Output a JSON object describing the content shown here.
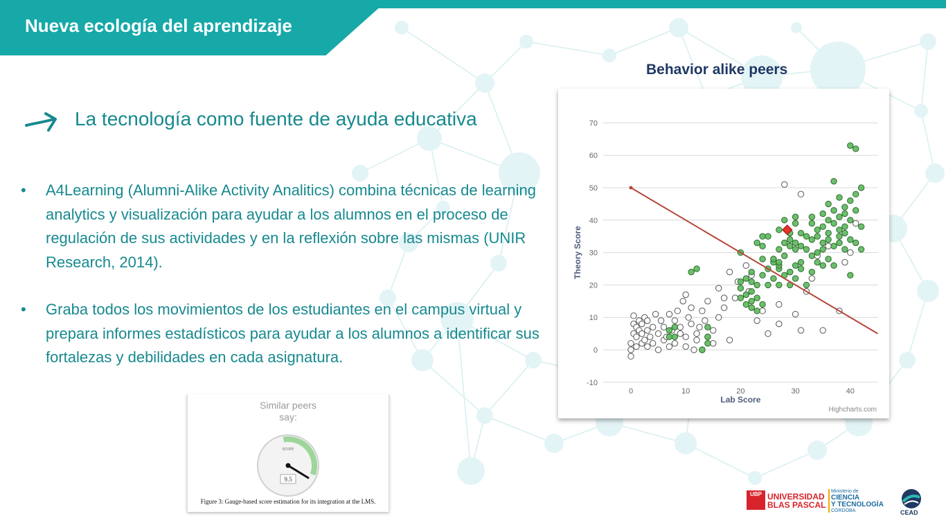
{
  "slide": {
    "title": "Nueva ecología del aprendizaje",
    "subtitle": "La tecnología como fuente de ayuda educativa",
    "bullets": [
      "A4Learning (Alumni-Alike Activity Analitics) combina técnicas de learning analytics y visualización para ayudar a los alumnos en el proceso de regulación de sus actividades y en la reflexión sobre las mismas (UNIR Research, 2014).",
      "Graba todos los movimientos de los estudiantes en el campus virtual y prepara informes estadísticos para ayudar a los alumnos a identificar sus fortalezas y debilidades en cada asignatura."
    ],
    "bullet_symbol": "•"
  },
  "scatter": {
    "heading": "Behavior alike peers",
    "credit": "Highcharts.com"
  },
  "gauge": {
    "title_line1": "Similar peers",
    "title_line2": "say:",
    "label": "score",
    "value_text": "9.5",
    "value": 9.5,
    "max": 10,
    "caption": "Figure 3: Gauge-based score estimation for its integration at the LMS."
  },
  "logos": {
    "ubp_box": "UBP",
    "ubp_line1": "UNIVERSIDAD",
    "ubp_line2": "BLAS PASCAL",
    "ministerio_line1": "Ministerio de",
    "ministerio_line2": "CIENCIA",
    "ministerio_line3": "Y TECNOLOGÍA",
    "ministerio_line4": "CÓRDOBA",
    "cead": "CEAD"
  },
  "colors": {
    "accent": "#17a8a8",
    "text": "#17898f",
    "heading": "#1f3864",
    "point_green": "#5cb85c",
    "point_white": "#ffffff",
    "highlight": "#e8332a",
    "regression": "#b5473a"
  },
  "chart_data": {
    "type": "scatter",
    "title": "",
    "xlabel": "Lab Score",
    "ylabel": "Theory Score",
    "xlim": [
      -3,
      45
    ],
    "ylim": [
      -10,
      70
    ],
    "x_ticks": [
      0,
      10,
      20,
      30,
      40
    ],
    "y_ticks": [
      -10,
      0,
      10,
      20,
      30,
      40,
      50,
      60,
      70
    ],
    "grid": true,
    "legend": "none",
    "trend_line": {
      "x": [
        0,
        45
      ],
      "y": [
        50,
        5
      ]
    },
    "highlight_point": {
      "x": 28.5,
      "y": 37
    },
    "series": [
      {
        "color": "white",
        "points": [
          [
            0,
            -2
          ],
          [
            0,
            0
          ],
          [
            0,
            2
          ],
          [
            0.5,
            5
          ],
          [
            0.5,
            8
          ],
          [
            0.5,
            10.5
          ],
          [
            1,
            1
          ],
          [
            1,
            4
          ],
          [
            1,
            7
          ],
          [
            1.5,
            6
          ],
          [
            1.5,
            9
          ],
          [
            2,
            2
          ],
          [
            2,
            5
          ],
          [
            2,
            8
          ],
          [
            2.5,
            3
          ],
          [
            2.5,
            10
          ],
          [
            3,
            1
          ],
          [
            3,
            6
          ],
          [
            3,
            9
          ],
          [
            3.5,
            4
          ],
          [
            4,
            2
          ],
          [
            4,
            7
          ],
          [
            4.5,
            11
          ],
          [
            5,
            0
          ],
          [
            5,
            5
          ],
          [
            5.5,
            9
          ],
          [
            6,
            3
          ],
          [
            6,
            7
          ],
          [
            6.5,
            4
          ],
          [
            7,
            1
          ],
          [
            7,
            11
          ],
          [
            7.5,
            6
          ],
          [
            8,
            2
          ],
          [
            8,
            9
          ],
          [
            8.5,
            12
          ],
          [
            9,
            5
          ],
          [
            9,
            7
          ],
          [
            9.5,
            15
          ],
          [
            10,
            1
          ],
          [
            10,
            4
          ],
          [
            10,
            17
          ],
          [
            10.5,
            10
          ],
          [
            11,
            8
          ],
          [
            11,
            13
          ],
          [
            11.5,
            0
          ],
          [
            12,
            3
          ],
          [
            12,
            5
          ],
          [
            12.5,
            7
          ],
          [
            13,
            0
          ],
          [
            13,
            12
          ],
          [
            13.5,
            9
          ],
          [
            14,
            4
          ],
          [
            14,
            15
          ],
          [
            15,
            2
          ],
          [
            15,
            6
          ],
          [
            16,
            10
          ],
          [
            16,
            19
          ],
          [
            17,
            13
          ],
          [
            17,
            16
          ],
          [
            18,
            3
          ],
          [
            18,
            24
          ],
          [
            19,
            16
          ],
          [
            19.5,
            21
          ],
          [
            21,
            26
          ],
          [
            21.5,
            18
          ],
          [
            22,
            23
          ],
          [
            23,
            9
          ],
          [
            24,
            12
          ],
          [
            25,
            5
          ],
          [
            26,
            28
          ],
          [
            27,
            14
          ],
          [
            27,
            8
          ],
          [
            28,
            51
          ],
          [
            29,
            24
          ],
          [
            30,
            11
          ],
          [
            31,
            6
          ],
          [
            31,
            48
          ],
          [
            32,
            18
          ],
          [
            33,
            22
          ],
          [
            34,
            29
          ],
          [
            35,
            6
          ],
          [
            36,
            32
          ],
          [
            38,
            12
          ],
          [
            39,
            27
          ],
          [
            40,
            30
          ],
          [
            41,
            39
          ]
        ]
      },
      {
        "color": "green",
        "points": [
          [
            7,
            4
          ],
          [
            7,
            6
          ],
          [
            8,
            4
          ],
          [
            8,
            7
          ],
          [
            13,
            0
          ],
          [
            14,
            4
          ],
          [
            14,
            7
          ],
          [
            14,
            2
          ],
          [
            11,
            24
          ],
          [
            12,
            25
          ],
          [
            20,
            30
          ],
          [
            20,
            21
          ],
          [
            20,
            19
          ],
          [
            20,
            16
          ],
          [
            21,
            22
          ],
          [
            21,
            14
          ],
          [
            21,
            17
          ],
          [
            22,
            15
          ],
          [
            22,
            18
          ],
          [
            22,
            21
          ],
          [
            22,
            13
          ],
          [
            23,
            12
          ],
          [
            23,
            16
          ],
          [
            23,
            33
          ],
          [
            24,
            14
          ],
          [
            24,
            28
          ],
          [
            24,
            32
          ],
          [
            24,
            35
          ],
          [
            25,
            25
          ],
          [
            25,
            35
          ],
          [
            26,
            27
          ],
          [
            26,
            22
          ],
          [
            27,
            37
          ],
          [
            27,
            25
          ],
          [
            27,
            31
          ],
          [
            27,
            20
          ],
          [
            27,
            26
          ],
          [
            28,
            33
          ],
          [
            28,
            40
          ],
          [
            28,
            29
          ],
          [
            29,
            24
          ],
          [
            29,
            32
          ],
          [
            29,
            20
          ],
          [
            29,
            34
          ],
          [
            29,
            36
          ],
          [
            30,
            33
          ],
          [
            30,
            31
          ],
          [
            30,
            26
          ],
          [
            30,
            41
          ],
          [
            30,
            22
          ],
          [
            30,
            39
          ],
          [
            31,
            27
          ],
          [
            31,
            25
          ],
          [
            31,
            36
          ],
          [
            31,
            32
          ],
          [
            32,
            35
          ],
          [
            32,
            20
          ],
          [
            32,
            31
          ],
          [
            33,
            39
          ],
          [
            33,
            29
          ],
          [
            33,
            24
          ],
          [
            33,
            34
          ],
          [
            33,
            41
          ],
          [
            34,
            27
          ],
          [
            34,
            35
          ],
          [
            34,
            30
          ],
          [
            34,
            37
          ],
          [
            35,
            26
          ],
          [
            35,
            33
          ],
          [
            35,
            38
          ],
          [
            35,
            42
          ],
          [
            35,
            31
          ],
          [
            36,
            28
          ],
          [
            36,
            36
          ],
          [
            36,
            40
          ],
          [
            36,
            34
          ],
          [
            36,
            45
          ],
          [
            37,
            32
          ],
          [
            37,
            39
          ],
          [
            37,
            43
          ],
          [
            37,
            26
          ],
          [
            37,
            52
          ],
          [
            38,
            35
          ],
          [
            38,
            41
          ],
          [
            38,
            33
          ],
          [
            38,
            47
          ],
          [
            38,
            37
          ],
          [
            39,
            44
          ],
          [
            39,
            31
          ],
          [
            39,
            38
          ],
          [
            39,
            42
          ],
          [
            39,
            36
          ],
          [
            40,
            46
          ],
          [
            40,
            40
          ],
          [
            40,
            34
          ],
          [
            40,
            23
          ],
          [
            40,
            63
          ],
          [
            41,
            43
          ],
          [
            41,
            62
          ],
          [
            41,
            48
          ],
          [
            41,
            33
          ],
          [
            42,
            50
          ],
          [
            42,
            38
          ],
          [
            42,
            31
          ],
          [
            27,
            27
          ],
          [
            28,
            23
          ],
          [
            26,
            28
          ],
          [
            25,
            20
          ],
          [
            24,
            23
          ],
          [
            23,
            20
          ],
          [
            22,
            24
          ]
        ]
      }
    ]
  }
}
